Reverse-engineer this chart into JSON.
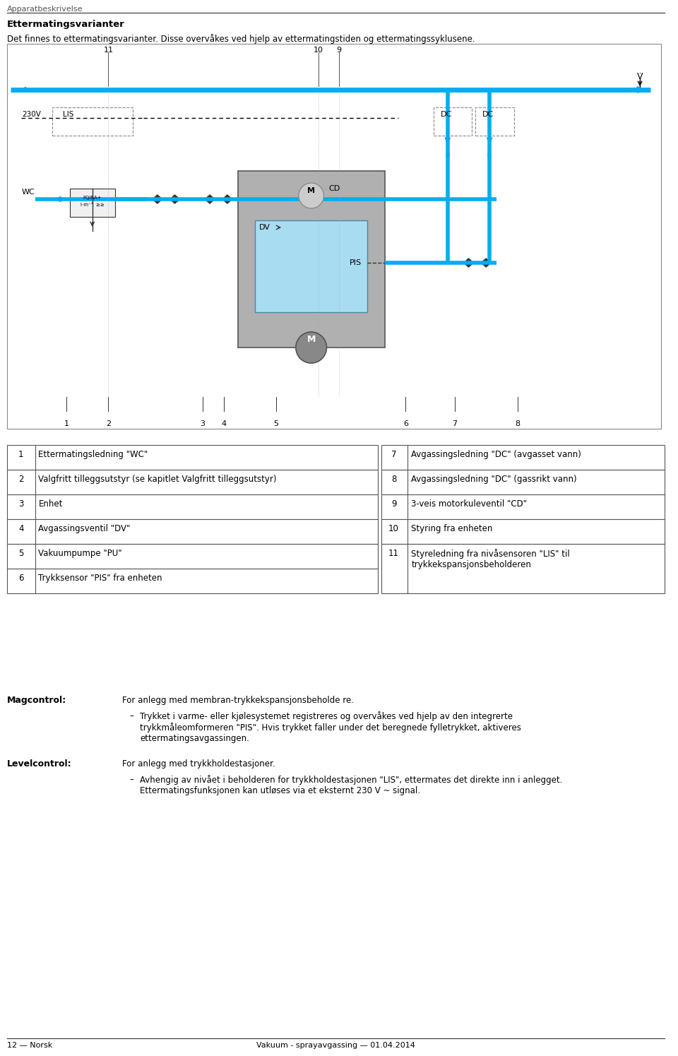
{
  "page_header": "Apparatbeskrivelse",
  "section_title": "Ettermatingsvarianter",
  "section_subtitle": "Det finnes to ettermatingsvarianter. Disse overvåkes ved hjelp av ettermatingstiden og ettermatingssyklusene.",
  "table_left": [
    [
      "1",
      "Ettermatingsledning \"WC\""
    ],
    [
      "2",
      "Valgfritt tilleggsutstyr (se kapitlet Valgfritt tilleggsutstyr)"
    ],
    [
      "3",
      "Enhet"
    ],
    [
      "4",
      "Avgassingsventil \"DV\""
    ],
    [
      "5",
      "Vakuumpumpe \"PU\""
    ],
    [
      "6",
      "Trykksensor \"PIS\" fra enheten"
    ]
  ],
  "table_right": [
    [
      "7",
      "Avgassingsledning \"DC\" (avgasset vann)"
    ],
    [
      "8",
      "Avgassingsledning \"DC\" (gassrikt vann)"
    ],
    [
      "9",
      "3-veis motorkuleventil \"CD\""
    ],
    [
      "10",
      "Styring fra enheten"
    ],
    [
      "11",
      "Styreledning fra nivåsensoren \"LIS\" til\ntrykkekspansjonsbeholderen"
    ]
  ],
  "magcontrol_label": "Magcontrol:",
  "magcontrol_text1": "For anlegg med membran-trykkekspansjonsbeholde re.",
  "magcontrol_bullet": "Trykket i varme- eller kjølesystemet registreres og overvåkes ved hjelp av den integrerte\ntrykkmåleomformeren \"PIS\". Hvis trykket faller under det beregnede fylletrykket, aktiveres\nettermatingsavgassingen.",
  "levelcontrol_label": "Levelcontrol:",
  "levelcontrol_text1": "For anlegg med trykkholdestasjoner.",
  "levelcontrol_bullet": "Avhengig av nivået i beholderen for trykkholdestasjonen \"LIS\", ettermates det direkte inn i anlegget.\nEttermatingsfunksjonen kan utløses via et eksternt 230 V ~ signal.",
  "footer_left": "12 — Norsk",
  "footer_center": "Vakuum - sprayavgassing — 01.04.2014",
  "bg_color": "#ffffff",
  "diagram_border_color": "#888888",
  "cyan_color": "#00aeef",
  "dark_color": "#333333",
  "text_color": "#000000",
  "table_border": "#555555"
}
